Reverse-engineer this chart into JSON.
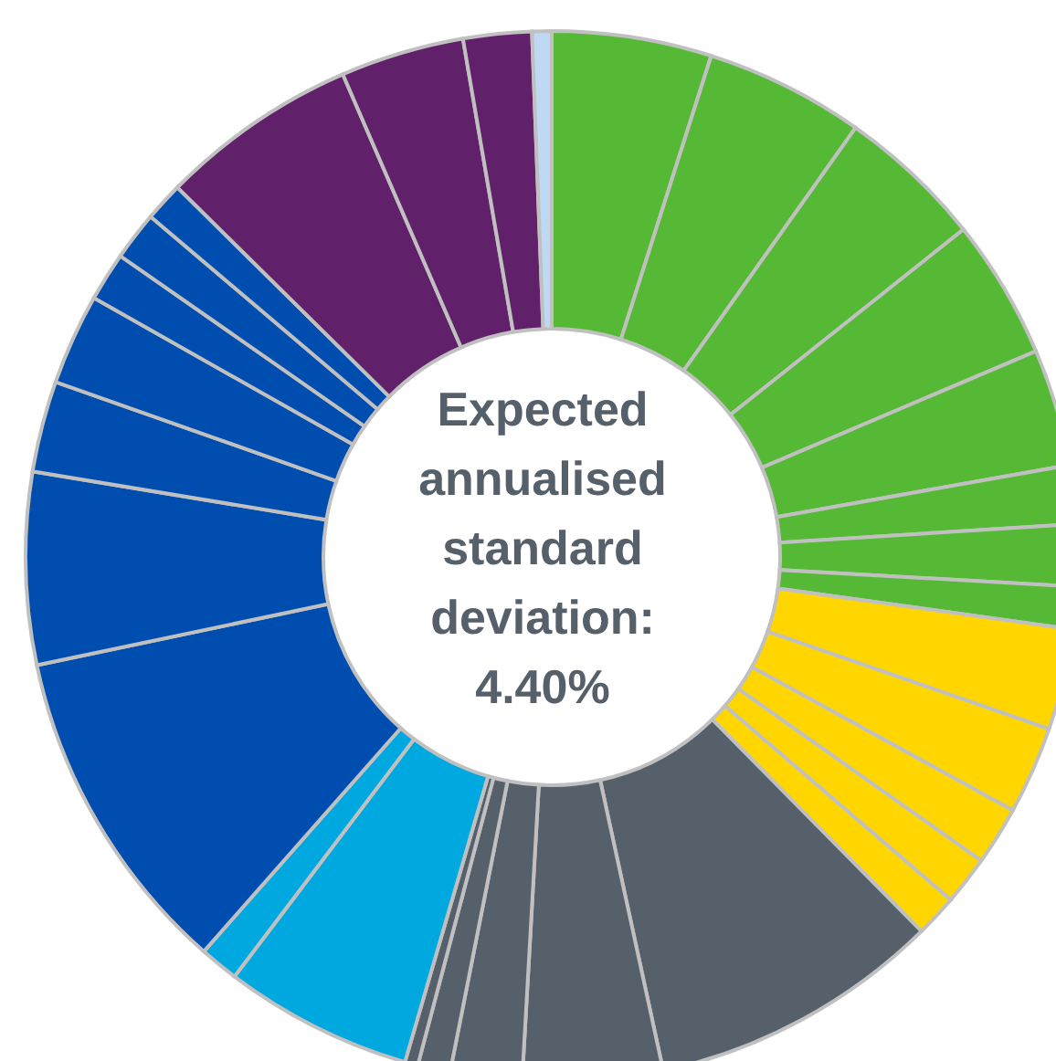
{
  "chart_data": {
    "type": "donut",
    "title": "Expected annualised standard deviation: 4.40%",
    "categories": [
      null,
      null,
      null,
      null,
      null,
      null,
      null,
      null,
      null,
      null,
      null,
      null,
      null,
      null,
      null,
      null,
      null,
      null,
      null,
      null,
      null,
      null,
      null,
      null,
      null,
      null,
      null,
      null,
      null,
      null,
      null
    ],
    "values": [
      4.9,
      4.9,
      4.5,
      4.3,
      3.6,
      1.8,
      1.9,
      1.3,
      3.1,
      2.7,
      1.8,
      1.5,
      1.3,
      9.0,
      4.3,
      2.2,
      1.0,
      0.4,
      5.8,
      1.2,
      10.2,
      5.9,
      2.8,
      2.8,
      1.5,
      1.5,
      1.2,
      6.1,
      3.8,
      2.1,
      0.6
    ],
    "colors": [
      "#56b935",
      "#56b935",
      "#56b935",
      "#56b935",
      "#56b935",
      "#56b935",
      "#56b935",
      "#56b935",
      "#ffd600",
      "#ffd600",
      "#ffd600",
      "#ffd600",
      "#ffd600",
      "#56606b",
      "#56606b",
      "#56606b",
      "#56606b",
      "#56606b",
      "#00a8e0",
      "#00a8e0",
      "#004db0",
      "#004db0",
      "#004db0",
      "#004db0",
      "#004db0",
      "#004db0",
      "#004db0",
      "#60206a",
      "#60206a",
      "#60206a",
      "#bfd9f5"
    ],
    "legend": false
  }
}
